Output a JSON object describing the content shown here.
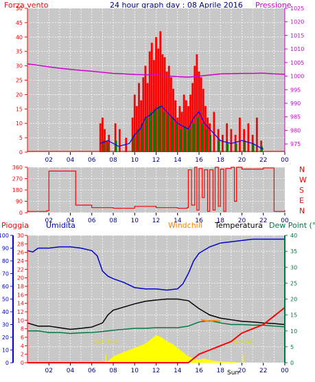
{
  "header": {
    "left_label": "Forza vento",
    "title": "24 hour graph day : 08 Aprile 2016",
    "right_label": "Pressione"
  },
  "dir_labels": [
    "N",
    "W",
    "S",
    "E",
    "N"
  ],
  "bottom_labels": {
    "pioggia": "Pioggia",
    "umidita": "Umidita",
    "windchill": "Windchill",
    "temperatura": "Temperatura",
    "dewpoint": "Dew Point (°C",
    "sunrise": "Sun Rise",
    "sunset": "Sun Set",
    "partial_label": "Sun"
  },
  "colors": {
    "panel_bg": "#c8c8c8",
    "axis_red": "#ff0000",
    "axis_magenta": "#cc00cc",
    "title_blue": "#000080",
    "humidity_blue": "#0000cc",
    "windchill_orange": "#ff8000",
    "dewpoint_green": "#007744",
    "temperature_black": "#000000",
    "solar_yellow": "#ffff00",
    "wind_red": "#ff0000",
    "wind_green": "#008000",
    "wind_blue": "#0000ff"
  },
  "chart_data": [
    {
      "type": "line",
      "name": "wind-pressure",
      "x_ticks": [
        "02",
        "04",
        "06",
        "08",
        "10",
        "12",
        "14",
        "16",
        "18",
        "20",
        "22",
        "00"
      ],
      "xlim": [
        0,
        24
      ],
      "y_left": {
        "ticks": [
          0,
          5,
          10,
          15,
          20,
          25,
          30,
          35,
          40,
          45,
          50
        ],
        "ylim": [
          0,
          50
        ]
      },
      "y_right": {
        "ticks": [
          975,
          980,
          985,
          990,
          995,
          1000,
          1005,
          1010,
          1015,
          1020,
          1025
        ],
        "ylim": [
          972,
          1025
        ]
      },
      "series": [
        {
          "name": "Pressione",
          "axis": "right",
          "x": [
            0,
            1,
            2,
            3,
            4,
            5,
            6,
            7,
            8,
            9,
            10,
            11,
            12,
            13,
            14,
            15,
            16,
            17,
            18,
            19,
            20,
            21,
            22,
            23,
            24
          ],
          "values": [
            1004.5,
            1004.0,
            1003.4,
            1002.9,
            1002.5,
            1002.1,
            1001.8,
            1001.4,
            1001.0,
            1000.8,
            1000.6,
            1000.5,
            1000.5,
            1000.1,
            999.8,
            999.6,
            1000.0,
            1000.4,
            1000.8,
            1000.9,
            1001.0,
            1001.0,
            1001.1,
            1000.8,
            1000.7
          ]
        },
        {
          "name": "Raffica",
          "axis": "left",
          "style": "bars",
          "x": [
            6.8,
            7.0,
            7.2,
            7.4,
            7.6,
            8.2,
            8.6,
            9.2,
            9.8,
            10.0,
            10.2,
            10.4,
            10.6,
            10.8,
            11.0,
            11.2,
            11.4,
            11.6,
            11.8,
            12.0,
            12.2,
            12.4,
            12.6,
            12.8,
            13.0,
            13.2,
            13.4,
            13.6,
            13.8,
            14.0,
            14.2,
            14.4,
            14.6,
            14.8,
            15.0,
            15.2,
            15.4,
            15.6,
            15.8,
            16.0,
            16.2,
            16.4,
            16.6,
            16.8,
            17.0,
            17.4,
            17.8,
            18.2,
            18.6,
            19.0,
            19.4,
            19.8,
            20.2,
            20.6,
            21.0,
            21.4,
            21.8
          ],
          "values": [
            10,
            12,
            8,
            4,
            6,
            10,
            8,
            5,
            12,
            20,
            16,
            24,
            18,
            26,
            30,
            24,
            35,
            38,
            32,
            40,
            36,
            42,
            34,
            33,
            28,
            30,
            26,
            22,
            18,
            12,
            16,
            14,
            20,
            18,
            16,
            20,
            24,
            30,
            34,
            28,
            26,
            22,
            16,
            12,
            10,
            14,
            8,
            6,
            10,
            8,
            6,
            12,
            8,
            10,
            6,
            12,
            4
          ]
        },
        {
          "name": "Vento medio",
          "axis": "left",
          "style": "bars",
          "x": [
            7.0,
            7.4,
            8.2,
            9.8,
            10.2,
            10.6,
            11.0,
            11.4,
            11.8,
            12.2,
            12.6,
            13.0,
            13.4,
            13.8,
            14.2,
            14.6,
            15.0,
            15.4,
            15.8,
            16.2,
            16.6,
            17.0,
            17.8,
            18.6,
            19.4,
            20.2,
            21.0,
            21.8
          ],
          "values": [
            4,
            3,
            4,
            6,
            8,
            10,
            12,
            14,
            15,
            16,
            14,
            13,
            12,
            10,
            8,
            9,
            8,
            10,
            12,
            10,
            8,
            6,
            4,
            3,
            3,
            4,
            3,
            2
          ]
        },
        {
          "name": "Vento medio (linea)",
          "axis": "left",
          "x": [
            6.8,
            7.5,
            8.5,
            9.5,
            10.0,
            10.5,
            11.0,
            11.5,
            12.0,
            12.5,
            13.0,
            13.5,
            14.0,
            14.5,
            15.0,
            15.5,
            16.0,
            16.5,
            17.0,
            17.5,
            18.0,
            19.0,
            20.0,
            21.0,
            22.0
          ],
          "values": [
            3,
            4,
            2,
            3,
            6,
            8,
            12,
            13,
            15,
            16,
            14,
            12,
            10,
            9,
            8,
            12,
            14,
            10,
            8,
            6,
            4,
            3,
            4,
            3,
            1
          ]
        }
      ]
    },
    {
      "type": "line",
      "name": "wind-direction",
      "x_ticks": [
        "02",
        "04",
        "06",
        "08",
        "10",
        "12",
        "14",
        "16",
        "18",
        "20",
        "22",
        "00"
      ],
      "xlim": [
        0,
        24
      ],
      "y_ticks": [
        0,
        90,
        180,
        270,
        360
      ],
      "ylim": [
        0,
        360
      ],
      "series": [
        {
          "name": "Direzione",
          "x": [
            0,
            1.8,
            2.0,
            4.3,
            4.5,
            6.0,
            8.0,
            10.0,
            12.0,
            14.0,
            14.9,
            15.0,
            15.3,
            15.6,
            15.8,
            16.0,
            16.3,
            16.5,
            16.8,
            17.0,
            17.3,
            17.5,
            17.8,
            18.0,
            18.3,
            18.5,
            19.0,
            19.3,
            19.5,
            20.0,
            22.0,
            22.8,
            23.0,
            24.0
          ],
          "values": [
            10,
            15,
            330,
            330,
            60,
            40,
            35,
            50,
            40,
            35,
            40,
            340,
            60,
            360,
            20,
            350,
            120,
            340,
            10,
            340,
            20,
            360,
            50,
            345,
            10,
            350,
            360,
            90,
            360,
            345,
            355,
            355,
            10,
            20
          ]
        }
      ]
    },
    {
      "type": "line",
      "name": "temp-humidity-rain",
      "x_ticks": [
        "02",
        "04",
        "06",
        "08",
        "10",
        "12",
        "14",
        "16",
        "18",
        "20",
        "22",
        "00"
      ],
      "xlim": [
        0,
        24
      ],
      "y_left_outer": {
        "ticks": [
          0,
          10,
          20,
          30,
          40,
          50,
          60,
          70,
          80,
          90,
          100
        ],
        "ylim": [
          0,
          100
        ]
      },
      "y_left_inner": {
        "ticks": [
          0,
          2,
          4,
          6,
          8,
          10,
          12,
          14,
          16,
          18,
          20,
          22,
          24,
          26,
          28,
          30
        ],
        "ylim": [
          0,
          30
        ]
      },
      "y_right": {
        "ticks": [
          0,
          5,
          10,
          15,
          20,
          25,
          30,
          35,
          40
        ],
        "ylim": [
          0,
          40
        ]
      },
      "series": [
        {
          "name": "Umidita",
          "axis": "left_outer",
          "x": [
            0,
            0.5,
            1.0,
            2.0,
            3.0,
            4.0,
            5.0,
            6.0,
            6.5,
            7.0,
            7.5,
            8.0,
            9.0,
            10.0,
            11.0,
            12.0,
            13.0,
            14.0,
            14.5,
            15.0,
            15.5,
            16.0,
            17.0,
            18.0,
            19.0,
            20.0,
            21.0,
            22.0,
            23.0,
            24.0
          ],
          "values": [
            88,
            87,
            90,
            90,
            91,
            91,
            90,
            88,
            84,
            72,
            68,
            66,
            63,
            59,
            58,
            58,
            57,
            58,
            62,
            70,
            80,
            86,
            91,
            94,
            95,
            96,
            97,
            97,
            97,
            97
          ]
        },
        {
          "name": "Temperatura",
          "axis": "right",
          "x": [
            0,
            1.0,
            2.0,
            3.0,
            4.0,
            5.0,
            6.0,
            7.0,
            7.5,
            8.0,
            9.0,
            10.0,
            11.0,
            12.0,
            13.0,
            14.0,
            15.0,
            16.0,
            17.0,
            18.0,
            19.0,
            20.0,
            21.0,
            22.0,
            23.0,
            24.0
          ],
          "values": [
            12.5,
            11.5,
            11.5,
            11.0,
            10.5,
            10.8,
            11.2,
            12.5,
            15.0,
            16.5,
            17.5,
            18.5,
            19.3,
            19.7,
            20.0,
            20.0,
            19.5,
            17.0,
            15.0,
            14.0,
            13.5,
            13.0,
            12.8,
            12.5,
            12.3,
            12.0
          ]
        },
        {
          "name": "Dew Point",
          "axis": "right",
          "x": [
            0,
            1.0,
            2.0,
            3.0,
            4.0,
            5.0,
            6.0,
            7.0,
            8.0,
            9.0,
            10.0,
            11.0,
            12.0,
            13.0,
            14.0,
            15.0,
            16.0,
            17.0,
            18.0,
            19.0,
            20.0,
            21.0,
            22.0,
            23.0,
            24.0
          ],
          "values": [
            10.0,
            10.0,
            9.5,
            9.5,
            9.2,
            9.4,
            9.5,
            9.8,
            10.2,
            10.5,
            10.8,
            10.8,
            11.0,
            11.0,
            11.0,
            11.5,
            12.8,
            13.2,
            12.5,
            12.0,
            12.0,
            11.8,
            11.8,
            11.5,
            11.3
          ]
        },
        {
          "name": "Windchill",
          "axis": "right",
          "x": [
            16.2,
            16.8,
            17.4,
            18.0
          ],
          "values": [
            13.5,
            13.0,
            13.2,
            13.0
          ]
        },
        {
          "name": "Pioggia",
          "axis": "left_inner",
          "x": [
            0,
            15.0,
            15.5,
            16.0,
            16.5,
            17.0,
            18.0,
            19.0,
            20.0,
            21.0,
            22.0,
            22.5,
            23.0,
            23.5,
            24.0
          ],
          "values": [
            0,
            0,
            1,
            2,
            2.5,
            3,
            4,
            5,
            7,
            8,
            9,
            10,
            11,
            12,
            13
          ]
        },
        {
          "name": "Radiazione solare",
          "axis": "left_inner",
          "style": "area",
          "x": [
            6.5,
            7.5,
            8.0,
            8.5,
            9.0,
            9.5,
            10.0,
            10.5,
            11.0,
            11.5,
            12.0,
            12.5,
            13.0,
            13.5,
            14.0,
            14.5,
            15.0,
            15.5,
            16.0,
            16.5,
            17.0,
            18.0,
            19.0,
            19.5,
            20.0
          ],
          "values": [
            0,
            0.3,
            1.5,
            2.0,
            2.5,
            3.0,
            3.5,
            4.0,
            4.5,
            5.5,
            6.5,
            6.0,
            5.0,
            4.5,
            3.5,
            2.5,
            1.5,
            1.0,
            0.7,
            1.0,
            0.6,
            0.3,
            0.2,
            0.1,
            0
          ]
        }
      ],
      "annotations": [
        {
          "text": "Sun Rise",
          "x": 7.3
        },
        {
          "text": "Sun Set",
          "x": 20.1
        }
      ]
    }
  ]
}
